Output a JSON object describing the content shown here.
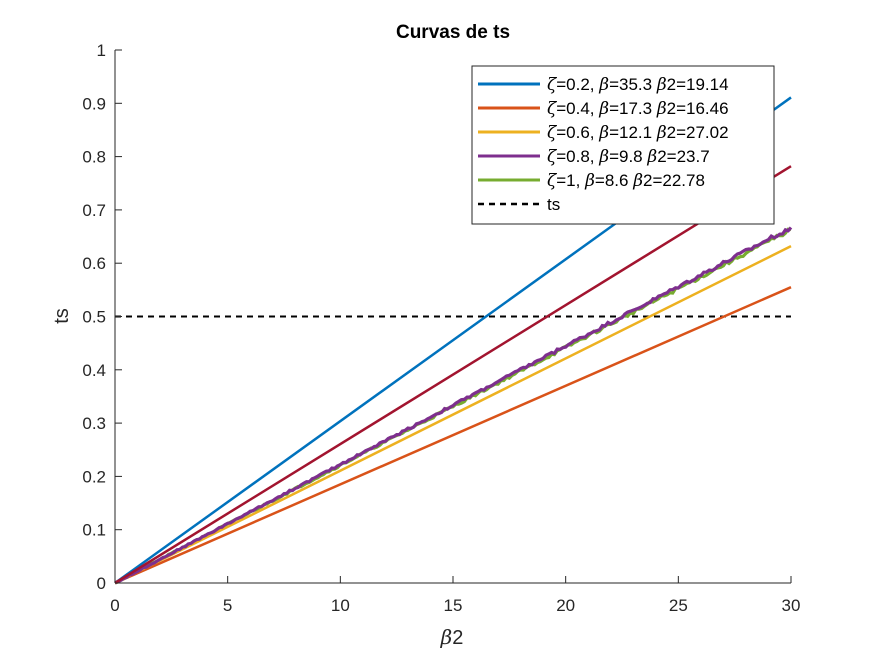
{
  "chart_data": {
    "type": "line",
    "title": "Curvas de ts",
    "xlabel_symbol": "β",
    "xlabel_rest": "2",
    "ylabel": "ts",
    "xlim": [
      0,
      30
    ],
    "ylim": [
      0,
      1
    ],
    "xticks": [
      0,
      5,
      10,
      15,
      20,
      25,
      30
    ],
    "yticks": [
      0,
      0.1,
      0.2,
      0.3,
      0.4,
      0.5,
      0.6,
      0.7,
      0.8,
      0.9,
      1
    ],
    "ytick_labels": [
      "0",
      "0.1",
      "0.2",
      "0.3",
      "0.4",
      "0.5",
      "0.6",
      "0.7",
      "0.8",
      "0.9",
      "1"
    ],
    "grid": false,
    "legend_position": "top-right",
    "series": [
      {
        "zeta": "0.2",
        "beta": "35.3",
        "beta2": "19.14",
        "color": "#0072BD",
        "x": [
          0,
          30
        ],
        "y": [
          0,
          0.911
        ]
      },
      {
        "zeta": "0.4",
        "beta": "17.3",
        "beta2": "16.46",
        "color": "#D95319",
        "x": [
          0,
          30
        ],
        "y": [
          0,
          0.555
        ]
      },
      {
        "zeta": "0.6",
        "beta": "12.1",
        "beta2": "27.02",
        "color": "#EDB120",
        "x": [
          0,
          30
        ],
        "y": [
          0,
          0.632
        ]
      },
      {
        "zeta": "0.8",
        "beta": "9.8",
        "beta2": "23.7",
        "color": "#7E2F8E",
        "x": [
          0,
          30
        ],
        "y": [
          0,
          0.667
        ],
        "noisy": true
      },
      {
        "zeta": "1",
        "beta": "8.6",
        "beta2": "22.78",
        "color": "#77AC30",
        "x": [
          0,
          30
        ],
        "y": [
          0,
          0.663
        ],
        "noisy": true
      }
    ],
    "extra_series": [
      {
        "color": "#A2142F",
        "x": [
          0,
          30
        ],
        "y": [
          0,
          0.782
        ]
      }
    ],
    "reference_line": {
      "name": "ts",
      "y": 0.5,
      "color": "#000000",
      "style": "dashed"
    }
  }
}
